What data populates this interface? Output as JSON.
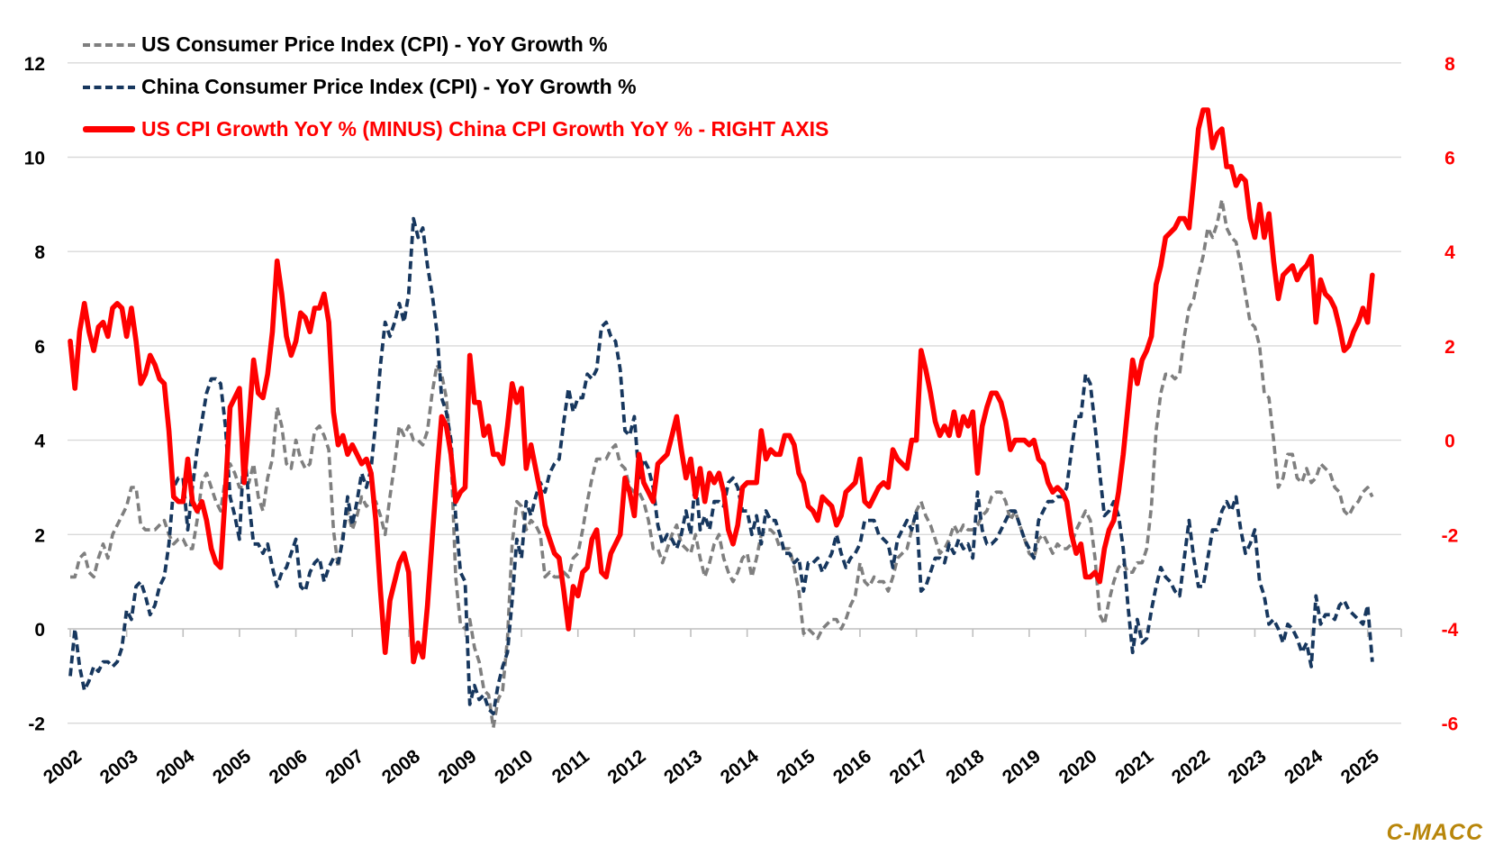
{
  "watermark": {
    "text": "C-MACC",
    "color": "#B8860B"
  },
  "chart_data": {
    "type": "line",
    "title": "",
    "xlabel": "",
    "ylabel_left": "",
    "ylabel_right": "",
    "grid": true,
    "legend_position": "top-left",
    "x_frequency": "monthly",
    "x_start": "2002-01",
    "x_end": "2025-02",
    "x_tick_labels": [
      "2002",
      "2003",
      "2004",
      "2005",
      "2006",
      "2007",
      "2008",
      "2009",
      "2010",
      "2011",
      "2012",
      "2013",
      "2014",
      "2015",
      "2016",
      "2017",
      "2018",
      "2019",
      "2020",
      "2021",
      "2022",
      "2023",
      "2024",
      "2025"
    ],
    "left_axis": {
      "ticks": [
        12,
        10,
        8,
        6,
        4,
        2,
        0,
        -2
      ],
      "range": [
        -2,
        12
      ],
      "label_color": "#000000"
    },
    "right_axis": {
      "ticks": [
        8,
        6,
        4,
        2,
        0,
        -2,
        -4,
        -6
      ],
      "range": [
        -6,
        8
      ],
      "label_color": "#FF0000"
    },
    "colors": {
      "us": "#7F7F7F",
      "china": "#17375E",
      "diff": "#FF0000",
      "gridline": "#D9D9D9",
      "axis_line": "#BFBFBF"
    },
    "series": [
      {
        "name": "US Consumer Price Index (CPI) - YoY Growth %",
        "axis": "left",
        "style": "dashed",
        "color": "#7F7F7F",
        "values": [
          1.1,
          1.1,
          1.5,
          1.6,
          1.2,
          1.1,
          1.5,
          1.8,
          1.5,
          2.0,
          2.2,
          2.4,
          2.6,
          3.0,
          3.0,
          2.2,
          2.1,
          2.1,
          2.1,
          2.2,
          2.3,
          2.0,
          1.8,
          1.9,
          1.9,
          1.7,
          1.7,
          2.3,
          3.1,
          3.3,
          3.0,
          2.7,
          2.5,
          3.2,
          3.5,
          3.3,
          3.0,
          3.0,
          3.1,
          3.5,
          2.8,
          2.5,
          3.2,
          3.6,
          4.7,
          4.3,
          3.5,
          3.4,
          4.0,
          3.6,
          3.4,
          3.5,
          4.2,
          4.3,
          4.1,
          3.8,
          2.1,
          1.3,
          2.0,
          2.5,
          2.1,
          2.4,
          2.8,
          2.6,
          2.7,
          2.7,
          2.4,
          2.0,
          2.8,
          3.5,
          4.3,
          4.1,
          4.3,
          4.0,
          4.0,
          3.9,
          4.2,
          5.0,
          5.6,
          5.4,
          4.9,
          3.7,
          1.1,
          0.1,
          0.0,
          0.2,
          -0.4,
          -0.7,
          -1.3,
          -1.4,
          -2.1,
          -1.5,
          -1.3,
          -0.2,
          1.8,
          2.7,
          2.6,
          2.1,
          2.3,
          2.2,
          2.0,
          1.1,
          1.2,
          1.1,
          1.1,
          1.2,
          1.1,
          1.5,
          1.6,
          2.1,
          2.7,
          3.2,
          3.6,
          3.6,
          3.6,
          3.8,
          3.9,
          3.5,
          3.4,
          3.0,
          2.9,
          2.9,
          2.7,
          2.3,
          1.7,
          1.7,
          1.4,
          1.7,
          2.0,
          2.2,
          1.8,
          1.7,
          1.6,
          2.0,
          1.5,
          1.1,
          1.4,
          1.8,
          2.0,
          1.5,
          1.2,
          1.0,
          1.2,
          1.5,
          1.6,
          1.1,
          1.5,
          2.0,
          2.1,
          2.1,
          2.0,
          1.7,
          1.7,
          1.7,
          1.3,
          0.8,
          -0.1,
          0.0,
          -0.1,
          -0.2,
          0.0,
          0.1,
          0.2,
          0.2,
          0.0,
          0.2,
          0.5,
          0.7,
          1.4,
          1.0,
          0.9,
          1.1,
          1.0,
          1.0,
          0.8,
          1.1,
          1.5,
          1.6,
          1.7,
          2.1,
          2.5,
          2.7,
          2.4,
          2.2,
          1.9,
          1.6,
          1.7,
          1.9,
          2.2,
          2.0,
          2.2,
          2.1,
          2.1,
          2.2,
          2.4,
          2.5,
          2.8,
          2.9,
          2.9,
          2.7,
          2.3,
          2.5,
          2.2,
          1.9,
          1.6,
          1.5,
          1.9,
          2.0,
          1.8,
          1.6,
          1.8,
          1.7,
          1.7,
          1.8,
          2.1,
          2.3,
          2.5,
          2.3,
          1.5,
          0.3,
          0.1,
          0.6,
          1.0,
          1.3,
          1.4,
          1.2,
          1.2,
          1.4,
          1.4,
          1.7,
          2.6,
          4.2,
          5.0,
          5.4,
          5.4,
          5.3,
          5.4,
          6.2,
          6.8,
          7.0,
          7.5,
          7.9,
          8.5,
          8.3,
          8.6,
          9.1,
          8.5,
          8.3,
          8.2,
          7.7,
          7.1,
          6.5,
          6.4,
          6.0,
          5.0,
          4.9,
          4.0,
          3.0,
          3.2,
          3.7,
          3.7,
          3.2,
          3.1,
          3.4,
          3.1,
          3.2,
          3.5,
          3.4,
          3.3,
          3.0,
          2.9,
          2.5,
          2.4,
          2.6,
          2.7,
          2.9,
          3.0,
          2.8
        ]
      },
      {
        "name": "China Consumer Price Index (CPI) - YoY Growth %",
        "axis": "left",
        "style": "dashed",
        "color": "#17375E",
        "values": [
          -1.0,
          0.0,
          -0.8,
          -1.3,
          -1.1,
          -0.8,
          -0.9,
          -0.7,
          -0.7,
          -0.8,
          -0.7,
          -0.4,
          0.4,
          0.2,
          0.9,
          1.0,
          0.7,
          0.3,
          0.5,
          0.9,
          1.1,
          1.8,
          3.0,
          3.2,
          3.2,
          2.1,
          3.0,
          3.8,
          4.4,
          5.0,
          5.3,
          5.3,
          5.2,
          4.3,
          2.8,
          2.4,
          1.9,
          3.9,
          2.7,
          1.8,
          1.8,
          1.6,
          1.8,
          1.3,
          0.9,
          1.2,
          1.3,
          1.6,
          1.9,
          0.9,
          0.8,
          1.2,
          1.4,
          1.5,
          1.0,
          1.3,
          1.5,
          1.4,
          1.9,
          2.8,
          2.2,
          2.7,
          3.3,
          3.0,
          3.4,
          4.4,
          5.6,
          6.5,
          6.2,
          6.5,
          6.9,
          6.5,
          7.1,
          8.7,
          8.3,
          8.5,
          7.7,
          7.1,
          6.3,
          4.9,
          4.6,
          4.0,
          2.4,
          1.2,
          1.0,
          -1.6,
          -1.2,
          -1.5,
          -1.4,
          -1.7,
          -1.8,
          -1.2,
          -0.8,
          -0.5,
          0.6,
          1.9,
          1.5,
          2.7,
          2.4,
          2.8,
          3.1,
          2.9,
          3.3,
          3.5,
          3.6,
          4.4,
          5.1,
          4.6,
          4.9,
          4.9,
          5.4,
          5.3,
          5.5,
          6.4,
          6.5,
          6.2,
          6.1,
          5.5,
          4.2,
          4.1,
          4.5,
          3.2,
          3.6,
          3.4,
          3.0,
          2.2,
          1.8,
          2.0,
          1.9,
          1.7,
          2.0,
          2.5,
          2.0,
          3.2,
          2.1,
          2.4,
          2.1,
          2.7,
          2.7,
          2.6,
          3.1,
          3.2,
          3.0,
          2.5,
          2.5,
          2.0,
          2.4,
          1.8,
          2.5,
          2.3,
          2.3,
          2.0,
          1.6,
          1.6,
          1.4,
          1.5,
          0.8,
          1.4,
          1.4,
          1.5,
          1.2,
          1.4,
          1.6,
          2.0,
          1.6,
          1.3,
          1.5,
          1.6,
          1.8,
          2.3,
          2.3,
          2.3,
          2.0,
          1.9,
          1.8,
          1.3,
          1.9,
          2.1,
          2.3,
          2.1,
          2.5,
          0.8,
          0.9,
          1.2,
          1.5,
          1.5,
          1.4,
          1.8,
          1.6,
          1.9,
          1.7,
          1.8,
          1.5,
          2.9,
          2.1,
          1.8,
          1.8,
          1.9,
          2.1,
          2.3,
          2.5,
          2.5,
          2.2,
          1.9,
          1.7,
          1.5,
          2.3,
          2.5,
          2.7,
          2.7,
          2.8,
          2.8,
          3.0,
          3.8,
          4.5,
          4.5,
          5.4,
          5.2,
          4.3,
          3.3,
          2.4,
          2.5,
          2.7,
          2.4,
          1.7,
          0.5,
          -0.5,
          0.2,
          -0.3,
          -0.2,
          0.4,
          0.9,
          1.3,
          1.1,
          1.0,
          0.8,
          0.7,
          1.5,
          2.3,
          1.5,
          0.9,
          0.9,
          1.5,
          2.1,
          2.1,
          2.5,
          2.7,
          2.5,
          2.8,
          2.1,
          1.6,
          1.8,
          2.1,
          1.0,
          0.7,
          0.1,
          0.2,
          0.0,
          -0.3,
          0.1,
          0.0,
          -0.2,
          -0.5,
          -0.3,
          -0.8,
          0.7,
          0.1,
          0.3,
          0.3,
          0.2,
          0.5,
          0.6,
          0.4,
          0.3,
          0.2,
          0.1,
          0.5,
          -0.7
        ]
      },
      {
        "name": "US CPI Growth YoY % (MINUS) China CPI Growth YoY % - RIGHT AXIS",
        "axis": "right",
        "style": "solid",
        "color": "#FF0000",
        "derived": "series[0] minus series[1]",
        "values": [
          2.1,
          1.1,
          2.3,
          2.9,
          2.3,
          1.9,
          2.4,
          2.5,
          2.2,
          2.8,
          2.9,
          2.8,
          2.2,
          2.8,
          2.1,
          1.2,
          1.4,
          1.8,
          1.6,
          1.3,
          1.2,
          0.2,
          -1.2,
          -1.3,
          -1.3,
          -0.4,
          -1.3,
          -1.5,
          -1.3,
          -1.7,
          -2.3,
          -2.6,
          -2.7,
          -1.1,
          0.7,
          0.9,
          1.1,
          -0.9,
          0.4,
          1.7,
          1.0,
          0.9,
          1.4,
          2.3,
          3.8,
          3.1,
          2.2,
          1.8,
          2.1,
          2.7,
          2.6,
          2.3,
          2.8,
          2.8,
          3.1,
          2.5,
          0.6,
          -0.1,
          0.1,
          -0.3,
          -0.1,
          -0.3,
          -0.5,
          -0.4,
          -0.7,
          -1.7,
          -3.2,
          -4.5,
          -3.4,
          -3.0,
          -2.6,
          -2.4,
          -2.8,
          -4.7,
          -4.3,
          -4.6,
          -3.5,
          -2.1,
          -0.7,
          0.5,
          0.3,
          -0.3,
          -1.3,
          -1.1,
          -1.0,
          1.8,
          0.8,
          0.8,
          0.1,
          0.3,
          -0.3,
          -0.3,
          -0.5,
          0.3,
          1.2,
          0.8,
          1.1,
          -0.6,
          -0.1,
          -0.6,
          -1.1,
          -1.8,
          -2.1,
          -2.4,
          -2.5,
          -3.2,
          -4.0,
          -3.1,
          -3.3,
          -2.8,
          -2.7,
          -2.1,
          -1.9,
          -2.8,
          -2.9,
          -2.4,
          -2.2,
          -2.0,
          -0.8,
          -1.1,
          -1.6,
          -0.3,
          -0.9,
          -1.1,
          -1.3,
          -0.5,
          -0.4,
          -0.3,
          0.1,
          0.5,
          -0.2,
          -0.8,
          -0.4,
          -1.2,
          -0.6,
          -1.3,
          -0.7,
          -0.9,
          -0.7,
          -1.1,
          -1.9,
          -2.2,
          -1.8,
          -1.0,
          -0.9,
          -0.9,
          -0.9,
          0.2,
          -0.4,
          -0.2,
          -0.3,
          -0.3,
          0.1,
          0.1,
          -0.1,
          -0.7,
          -0.9,
          -1.4,
          -1.5,
          -1.7,
          -1.2,
          -1.3,
          -1.4,
          -1.8,
          -1.6,
          -1.1,
          -1.0,
          -0.9,
          -0.4,
          -1.3,
          -1.4,
          -1.2,
          -1.0,
          -0.9,
          -1.0,
          -0.2,
          -0.4,
          -0.5,
          -0.6,
          0.0,
          0.0,
          1.9,
          1.5,
          1.0,
          0.4,
          0.1,
          0.3,
          0.1,
          0.6,
          0.1,
          0.5,
          0.3,
          0.6,
          -0.7,
          0.3,
          0.7,
          1.0,
          1.0,
          0.8,
          0.4,
          -0.2,
          0.0,
          0.0,
          0.0,
          -0.1,
          0.0,
          -0.4,
          -0.5,
          -0.9,
          -1.1,
          -1.0,
          -1.1,
          -1.3,
          -2.0,
          -2.4,
          -2.2,
          -2.9,
          -2.9,
          -2.8,
          -3.0,
          -2.3,
          -1.9,
          -1.7,
          -1.1,
          -0.3,
          0.7,
          1.7,
          1.2,
          1.7,
          1.9,
          2.2,
          3.3,
          3.7,
          4.3,
          4.4,
          4.5,
          4.7,
          4.7,
          4.5,
          5.5,
          6.6,
          7.0,
          7.0,
          6.2,
          6.5,
          6.6,
          5.8,
          5.8,
          5.4,
          5.6,
          5.5,
          4.7,
          4.3,
          5.0,
          4.3,
          4.8,
          3.8,
          3.0,
          3.5,
          3.6,
          3.7,
          3.4,
          3.6,
          3.7,
          3.9,
          2.5,
          3.4,
          3.1,
          3.0,
          2.8,
          2.4,
          1.9,
          2.0,
          2.3,
          2.5,
          2.8,
          2.5,
          3.5
        ]
      }
    ]
  }
}
